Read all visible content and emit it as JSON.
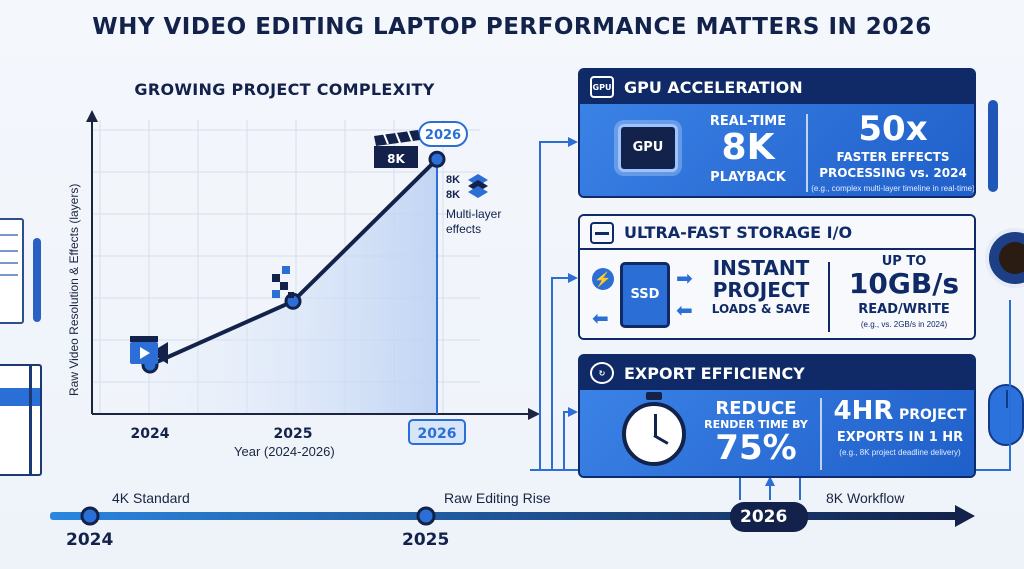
{
  "title": "WHY VIDEO EDITING LAPTOP PERFORMANCE MATTERS IN 2026",
  "chart_data": {
    "type": "line",
    "title": "GROWING PROJECT COMPLEXITY",
    "xlabel": "Year (2024-2026)",
    "ylabel": "Raw Video Resolution & Effects (layers)",
    "categories": [
      "2024",
      "2025",
      "2026"
    ],
    "values": [
      1,
      2.3,
      5.2
    ],
    "ylim": [
      0,
      6
    ],
    "grid": true,
    "highlight_label": "2026",
    "annotations": {
      "badge_8k": "8K",
      "stack_line1": "8K",
      "stack_line2": "8K",
      "stack_text_line1": "Multi-layer",
      "stack_text_line2": "effects"
    }
  },
  "gpu": {
    "header": "GPU ACCELERATION",
    "chip_label": "GPU",
    "header_icon": "GPU",
    "realtime": "REAL-TIME",
    "res": "8K",
    "playback": "PLAYBACK",
    "big": "50x",
    "sub1": "FASTER EFFECTS",
    "sub2": "PROCESSING vs. 2024",
    "note": "(e.g., complex multi-layer timeline in real-time)"
  },
  "storage": {
    "header": "ULTRA-FAST STORAGE I/O",
    "ssd_label": "SSD",
    "line1": "INSTANT",
    "line2": "PROJECT",
    "line3": "LOADS & SAVE",
    "upto": "UP TO",
    "big": "10GB/s",
    "rw": "READ/WRITE",
    "note": "(e.g., vs. 2GB/s in 2024)"
  },
  "export": {
    "header": "EXPORT EFFICIENCY",
    "line1": "REDUCE",
    "line2": "RENDER TIME BY",
    "big": "75%",
    "big_right": "4HR",
    "right1": "PROJECT",
    "right2": "EXPORTS IN 1 HR",
    "note": "(e.g., 8K project deadline delivery)"
  },
  "timeline": {
    "years": [
      "2024",
      "2025",
      "2026"
    ],
    "labels": [
      "4K Standard",
      "Raw Editing Rise",
      "8K Workflow"
    ]
  }
}
